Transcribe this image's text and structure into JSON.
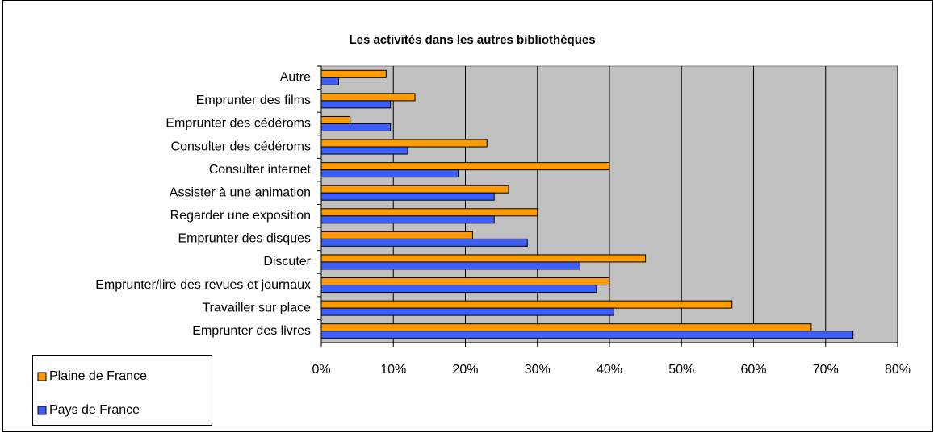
{
  "chart_data": {
    "type": "bar",
    "orientation": "horizontal",
    "title": "Les activités dans les autres bibliothèques",
    "categories": [
      "Autre",
      "Emprunter des films",
      "Emprunter des cédéroms",
      "Consulter des cédéroms",
      "Consulter internet",
      "Assister à une animation",
      "Regarder une exposition",
      "Emprunter des disques",
      "Discuter",
      "Emprunter/lire des revues et journaux",
      "Travailler sur place",
      "Emprunter des livres"
    ],
    "series": [
      {
        "name": "Plaine de France",
        "color": "#ff9a00",
        "values": [
          9,
          13,
          4,
          23,
          40,
          26,
          30,
          21,
          45,
          40,
          57,
          68
        ]
      },
      {
        "name": "Pays de France",
        "color": "#3d5eff",
        "values": [
          2.4,
          9.6,
          9.6,
          12,
          19,
          24,
          24,
          28.6,
          35.9,
          38.2,
          40.6,
          73.8
        ]
      }
    ],
    "xlim": [
      0,
      80
    ],
    "xticks": [
      {
        "value": 0,
        "label": "0%"
      },
      {
        "value": 10,
        "label": "10%"
      },
      {
        "value": 20,
        "label": "20%"
      },
      {
        "value": 30,
        "label": "30%"
      },
      {
        "value": 40,
        "label": "40%"
      },
      {
        "value": 50,
        "label": "50%"
      },
      {
        "value": 60,
        "label": "60%"
      },
      {
        "value": 70,
        "label": "70%"
      },
      {
        "value": 80,
        "label": "80%"
      }
    ],
    "grid": true,
    "legend": "bottom-left"
  }
}
